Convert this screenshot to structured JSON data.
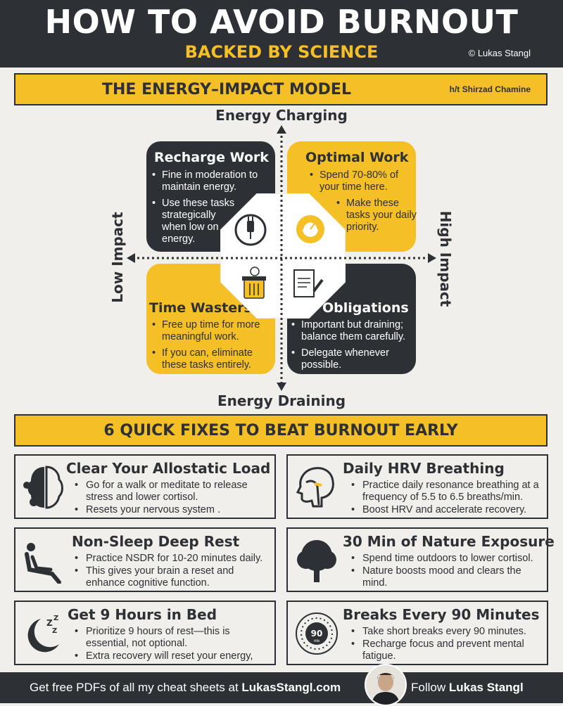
{
  "header": {
    "title": "HOW TO AVOID BURNOUT",
    "subtitle": "BACKED BY SCIENCE",
    "copyright": "© Lukas Stangl"
  },
  "model": {
    "title": "THE ENERGY–IMPACT MODEL",
    "credit": "h/t Shirzad Chamine",
    "axis_top": "Energy Charging",
    "axis_bottom": "Energy Draining",
    "axis_left": "Low Impact",
    "axis_right": "High Impact",
    "quadrants": {
      "recharge": {
        "title": "Recharge Work",
        "bullets": [
          "Fine in moderation to maintain energy.",
          "Use these tasks strategically when low on energy."
        ]
      },
      "optimal": {
        "title": "Optimal Work",
        "bullets": [
          "Spend 70-80% of your time here.",
          "Make these tasks your daily priority."
        ]
      },
      "wasters": {
        "title": "Time Wasters",
        "bullets": [
          "Free up time for more meaningful work.",
          "If you can, eliminate these tasks entirely."
        ]
      },
      "obligations": {
        "title": "Obligations",
        "bullets": [
          "Important but draining; balance them carefully.",
          "Delegate whenever possible."
        ]
      }
    },
    "icons": {
      "recharge": "plug-icon",
      "optimal": "gear-gauge-icon",
      "wasters": "trash-clock-icon",
      "obligations": "bill-pen-icon"
    }
  },
  "fixes_title": "6 QUICK FIXES TO BEAT BURNOUT EARLY",
  "fixes": [
    {
      "title": "Clear Your Allostatic Load",
      "icon": "brain-gears-icon",
      "bullets": [
        "Go for a walk or meditate to release stress and lower cortisol.",
        "Resets your nervous system ."
      ]
    },
    {
      "title": "Daily HRV Breathing",
      "icon": "head-airway-icon",
      "bullets": [
        "Practice daily resonance breathing at a frequency of 5.5 to 6.5 breaths/min.",
        "Boost HRV and accelerate recovery."
      ]
    },
    {
      "title": "Non-Sleep Deep Rest",
      "icon": "reclining-person-icon",
      "bullets": [
        "Practice NSDR for 10-20 minutes daily.",
        "This  gives your brain a reset and enhance cognitive function."
      ]
    },
    {
      "title": "30 Min of Nature Exposure",
      "icon": "tree-icon",
      "bullets": [
        "Spend time outdoors to lower cortisol.",
        "Nature boosts mood and clears the mind."
      ]
    },
    {
      "title": "Get 9 Hours in Bed",
      "icon": "moon-zzz-icon",
      "bullets": [
        "Prioritize 9 hours of rest—this is essential, not optional.",
        "Extra recovery will reset your energy,"
      ]
    },
    {
      "title": "Breaks Every 90 Minutes",
      "icon": "timer-90-icon",
      "timer_label": "90",
      "timer_sub": "MIN",
      "bullets": [
        "Take short breaks every 90 minutes.",
        "Recharge focus and prevent mental fatigue."
      ]
    }
  ],
  "footer": {
    "left_text": "Get free PDFs of all my cheat sheets at ",
    "site": "LukasStangl.com",
    "right_text": "Follow ",
    "name": "Lukas Stangl"
  },
  "colors": {
    "dark": "#2d3035",
    "accent": "#f5bf26",
    "background": "#f1efeb"
  }
}
